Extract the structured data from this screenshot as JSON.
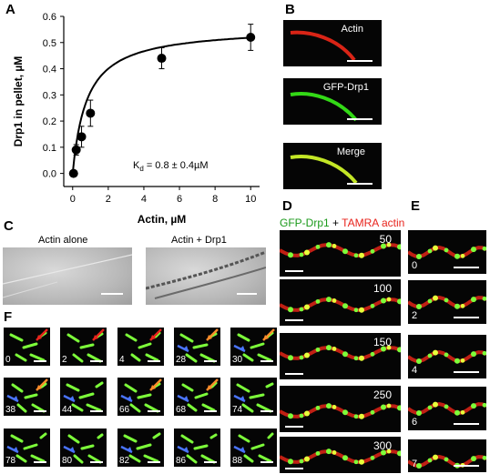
{
  "panels": {
    "A": "A",
    "B": "B",
    "C": "C",
    "D": "D",
    "E": "E",
    "F": "F"
  },
  "chart_data": {
    "type": "scatter",
    "xlabel": "Actin, µM",
    "ylabel": "Drp1 in pellet, µM",
    "xlim": [
      -0.5,
      10.5
    ],
    "ylim": [
      -0.05,
      0.6
    ],
    "xticks": [
      "0",
      "2",
      "4",
      "6",
      "8",
      "10"
    ],
    "yticks": [
      "0.0",
      "0.1",
      "0.2",
      "0.3",
      "0.4",
      "0.5",
      "0.6"
    ],
    "points": [
      {
        "x": 0.05,
        "y": 0.0,
        "err": 0.01
      },
      {
        "x": 0.2,
        "y": 0.09,
        "err": 0.02
      },
      {
        "x": 0.5,
        "y": 0.14,
        "err": 0.04
      },
      {
        "x": 1.0,
        "y": 0.23,
        "err": 0.05
      },
      {
        "x": 5.0,
        "y": 0.44,
        "err": 0.04
      },
      {
        "x": 10.0,
        "y": 0.52,
        "err": 0.05
      }
    ],
    "fit": {
      "bmax": 0.56,
      "kd": 0.8
    },
    "annotation": {
      "kd_sym": "K",
      "kd_sub": "d",
      "kd_rest": " = 0.8 ± 0.4µM"
    },
    "grid": false,
    "legend": "none"
  },
  "panel_B": {
    "labels": [
      "Actin",
      "GFP-Drp1",
      "Merge"
    ]
  },
  "panel_C": {
    "left": "Actin alone",
    "right": "Actin + Drp1"
  },
  "panel_D": {
    "title_green": "GFP-Drp1",
    "title_plus": " + ",
    "title_red": "TAMRA actin",
    "times": [
      "50",
      "100",
      "150",
      "250",
      "300"
    ]
  },
  "panel_E": {
    "times": [
      "0",
      "2",
      "4",
      "6",
      "7"
    ]
  },
  "panel_F": {
    "times": [
      "0",
      "2",
      "4",
      "28",
      "30",
      "38",
      "44",
      "66",
      "68",
      "74",
      "78",
      "80",
      "82",
      "86",
      "88"
    ]
  },
  "colors": {
    "green": "#7dff3a",
    "red": "#ff2a1a",
    "yellow": "#e8ff3a",
    "blue_arrow": "#4a74ff",
    "orange_arrow": "#ff8c2a",
    "red_arrow": "#e8231c"
  }
}
